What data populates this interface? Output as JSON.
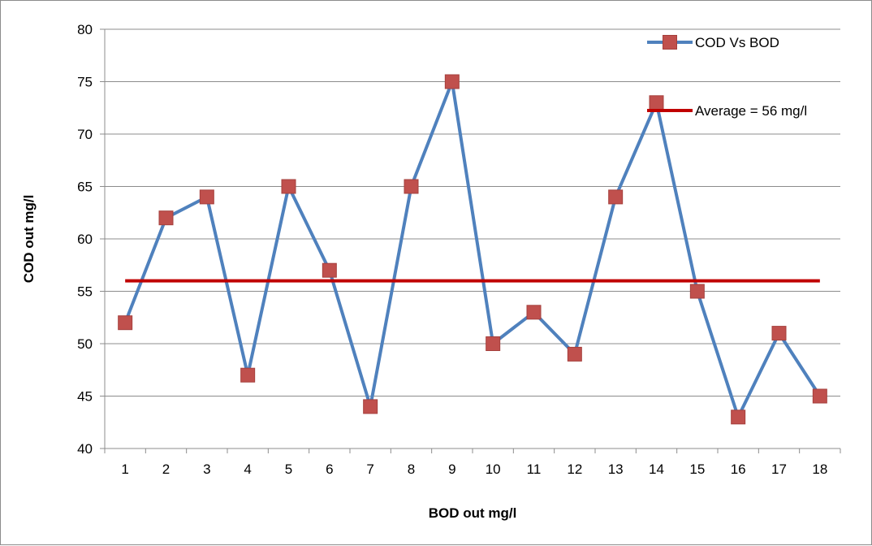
{
  "chart_data": {
    "type": "line",
    "title": "",
    "xlabel": "BOD out mg/l",
    "ylabel": "COD out mg/l",
    "ylim": [
      40,
      80
    ],
    "yticks": [
      40,
      45,
      50,
      55,
      60,
      65,
      70,
      75,
      80
    ],
    "categories": [
      "1",
      "2",
      "3",
      "4",
      "5",
      "6",
      "7",
      "8",
      "9",
      "10",
      "11",
      "12",
      "13",
      "14",
      "15",
      "16",
      "17",
      "18"
    ],
    "grid": "horizontal",
    "legend_position": "top-right",
    "series": [
      {
        "name": "COD Vs BOD",
        "line_color": "#4f81bd",
        "marker_color": "#c0504d",
        "marker": "square",
        "values": [
          52,
          62,
          64,
          47,
          65,
          57,
          44,
          65,
          75,
          50,
          53,
          49,
          64,
          73,
          55,
          43,
          51,
          45
        ]
      },
      {
        "name": "Average = 56 mg/l",
        "line_color": "#c00000",
        "values": [
          56,
          56,
          56,
          56,
          56,
          56,
          56,
          56,
          56,
          56,
          56,
          56,
          56,
          56,
          56,
          56,
          56,
          56
        ]
      }
    ]
  }
}
